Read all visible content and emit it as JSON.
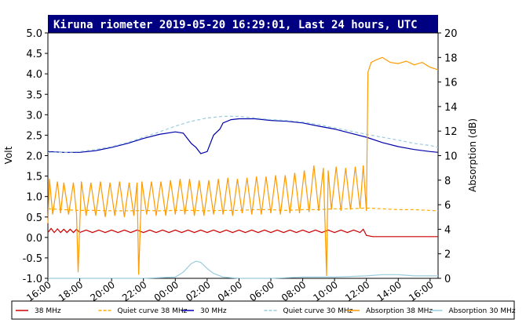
{
  "chart_data": {
    "type": "line",
    "title": "Kiruna riometer 2019-05-20 16:29:01, Last 24 hours, UTC",
    "ylabel": "Volt",
    "y2label": "Absorption (dB)",
    "ylim": [
      -1.0,
      5.0
    ],
    "y2lim": [
      0,
      20
    ],
    "xlim": [
      16,
      40.5
    ],
    "yticks": [
      "5.0",
      "4.5",
      "4.0",
      "3.5",
      "3.0",
      "2.5",
      "2.0",
      "1.5",
      "1.0",
      "0.5",
      "0.0",
      "-0.5",
      "-1.0"
    ],
    "y2ticks": [
      "20",
      "18",
      "16",
      "14",
      "12",
      "10",
      "8",
      "6",
      "4",
      "2",
      "0"
    ],
    "xticks": [
      "16:00",
      "18:00",
      "20:00",
      "22:00",
      "00:00",
      "02:00",
      "04:00",
      "06:00",
      "08:00",
      "10:00",
      "12:00",
      "14:00",
      "16:00"
    ],
    "grid": false,
    "legend_position": "bottom",
    "series": [
      {
        "name": "38 MHz",
        "color": "#cc0000",
        "dash": "solid",
        "axis": "left",
        "x": [
          16,
          16.2,
          16.4,
          16.6,
          16.8,
          17.0,
          17.2,
          17.4,
          17.6,
          17.8,
          18.0,
          18.4,
          18.8,
          19.2,
          19.6,
          20.0,
          20.4,
          20.8,
          21.2,
          21.6,
          22.0,
          22.4,
          22.8,
          23.2,
          23.6,
          24.0,
          24.4,
          24.8,
          25.2,
          25.6,
          26.0,
          26.4,
          26.8,
          27.2,
          27.6,
          28.0,
          28.4,
          28.8,
          29.2,
          29.6,
          30.0,
          30.4,
          30.8,
          31.2,
          31.6,
          32.0,
          32.4,
          32.8,
          33.2,
          33.6,
          34.0,
          34.4,
          34.8,
          35.2,
          35.6,
          35.8,
          36.0,
          36.4,
          37.0,
          38.0,
          39.0,
          40.0,
          40.5
        ],
        "y": [
          0.12,
          0.22,
          0.12,
          0.21,
          0.12,
          0.2,
          0.12,
          0.2,
          0.12,
          0.2,
          0.12,
          0.18,
          0.12,
          0.18,
          0.12,
          0.18,
          0.12,
          0.18,
          0.12,
          0.18,
          0.12,
          0.18,
          0.12,
          0.18,
          0.12,
          0.18,
          0.12,
          0.18,
          0.12,
          0.18,
          0.12,
          0.18,
          0.12,
          0.18,
          0.12,
          0.18,
          0.12,
          0.18,
          0.12,
          0.18,
          0.12,
          0.18,
          0.12,
          0.18,
          0.12,
          0.18,
          0.12,
          0.18,
          0.12,
          0.18,
          0.12,
          0.18,
          0.12,
          0.18,
          0.12,
          0.2,
          0.05,
          0.02,
          0.02,
          0.02,
          0.02,
          0.02,
          0.02
        ]
      },
      {
        "name": "Quiet curve 38 MHz",
        "color": "#ffaa00",
        "dash": "dashed",
        "axis": "left",
        "x": [
          16,
          17,
          18,
          19,
          20,
          21,
          22,
          23,
          24,
          25,
          26,
          27,
          28,
          29,
          30,
          31,
          32,
          33,
          34,
          35,
          36,
          37,
          38,
          39,
          40,
          40.5
        ],
        "y": [
          0.7,
          0.68,
          0.66,
          0.66,
          0.65,
          0.65,
          0.66,
          0.65,
          0.66,
          0.66,
          0.65,
          0.66,
          0.66,
          0.68,
          0.68,
          0.66,
          0.68,
          0.68,
          0.7,
          0.7,
          0.72,
          0.7,
          0.68,
          0.68,
          0.66,
          0.65
        ]
      },
      {
        "name": "30 MHz",
        "color": "#0000aa",
        "dash": "solid",
        "axis": "left",
        "x": [
          16,
          17,
          18,
          19,
          20,
          21,
          22,
          23,
          24,
          24.5,
          25,
          25.3,
          25.6,
          26.0,
          26.4,
          26.8,
          27.0,
          27.5,
          28,
          29,
          30,
          31,
          32,
          33,
          34,
          35,
          36,
          37,
          38,
          39,
          40,
          40.5
        ],
        "y": [
          2.1,
          2.08,
          2.08,
          2.12,
          2.2,
          2.3,
          2.42,
          2.52,
          2.58,
          2.55,
          2.3,
          2.2,
          2.05,
          2.1,
          2.5,
          2.65,
          2.8,
          2.88,
          2.9,
          2.9,
          2.86,
          2.84,
          2.8,
          2.72,
          2.65,
          2.55,
          2.45,
          2.32,
          2.22,
          2.15,
          2.1,
          2.08
        ]
      },
      {
        "name": "Quiet curve 30 MHz",
        "color": "#99ccdd",
        "dash": "dashed",
        "axis": "left",
        "x": [
          16,
          17,
          18,
          19,
          20,
          21,
          22,
          23,
          24,
          25,
          26,
          27,
          28,
          29,
          30,
          31,
          32,
          33,
          34,
          35,
          36,
          37,
          38,
          39,
          40,
          40.5
        ],
        "y": [
          2.08,
          2.08,
          2.1,
          2.15,
          2.22,
          2.32,
          2.45,
          2.58,
          2.72,
          2.84,
          2.92,
          2.96,
          2.96,
          2.92,
          2.88,
          2.86,
          2.82,
          2.76,
          2.68,
          2.6,
          2.52,
          2.45,
          2.38,
          2.3,
          2.25,
          2.2
        ]
      },
      {
        "name": "Absorption 38 MHz",
        "color": "#ff9900",
        "dash": "solid",
        "axis": "right",
        "x": [
          16,
          16.1,
          16.3,
          16.6,
          16.8,
          17.0,
          17.3,
          17.6,
          17.8,
          17.9,
          18.1,
          18.4,
          18.7,
          19.0,
          19.3,
          19.6,
          19.9,
          20.2,
          20.5,
          20.8,
          21.1,
          21.4,
          21.6,
          21.7,
          21.9,
          22.2,
          22.5,
          22.8,
          23.1,
          23.4,
          23.7,
          24.0,
          24.3,
          24.6,
          24.9,
          25.2,
          25.5,
          25.8,
          26.1,
          26.4,
          26.7,
          27.0,
          27.3,
          27.6,
          27.9,
          28.2,
          28.5,
          28.8,
          29.1,
          29.4,
          29.7,
          30.0,
          30.3,
          30.6,
          30.9,
          31.2,
          31.5,
          31.8,
          32.1,
          32.4,
          32.7,
          33.0,
          33.3,
          33.5,
          33.6,
          33.8,
          34.1,
          34.4,
          34.7,
          35.0,
          35.3,
          35.6,
          35.8,
          36.0,
          36.1,
          36.3,
          36.6,
          37.0,
          37.5,
          38.0,
          38.5,
          39.0,
          39.5,
          40.0,
          40.5
        ],
        "y": [
          4.5,
          8.1,
          5.2,
          7.9,
          5.3,
          7.8,
          5.2,
          7.8,
          5.2,
          0.5,
          7.9,
          5.1,
          7.8,
          5.1,
          7.9,
          5.0,
          7.8,
          5.1,
          7.9,
          5.0,
          7.8,
          5.1,
          7.8,
          0.3,
          7.9,
          5.2,
          7.9,
          5.1,
          7.9,
          5.1,
          8.0,
          5.2,
          8.1,
          5.2,
          8.1,
          5.1,
          8.0,
          5.1,
          8.0,
          5.2,
          8.1,
          5.2,
          8.2,
          5.1,
          8.1,
          5.3,
          8.2,
          5.2,
          8.3,
          5.2,
          8.3,
          5.3,
          8.4,
          5.2,
          8.4,
          5.3,
          8.6,
          5.3,
          8.8,
          5.4,
          9.2,
          5.5,
          9.0,
          0.2,
          8.8,
          5.6,
          9.1,
          5.5,
          9.0,
          5.6,
          9.1,
          5.7,
          9.2,
          5.5,
          16.8,
          17.6,
          17.8,
          18.0,
          17.6,
          17.5,
          17.7,
          17.4,
          17.6,
          17.2,
          17.0
        ]
      },
      {
        "name": "Absorption 30 MHz",
        "color": "#99ccdd",
        "dash": "solid",
        "axis": "right",
        "x": [
          16,
          18,
          20,
          22,
          24,
          24.5,
          25.0,
          25.3,
          25.6,
          26.0,
          26.4,
          27.0,
          28,
          30,
          32,
          34,
          36,
          37,
          38,
          39,
          40,
          40.5
        ],
        "y": [
          0.0,
          0.0,
          0.0,
          0.0,
          0.1,
          0.5,
          1.2,
          1.4,
          1.3,
          0.8,
          0.4,
          0.1,
          0.0,
          0.0,
          0.1,
          0.1,
          0.2,
          0.3,
          0.3,
          0.2,
          0.2,
          0.2
        ]
      }
    ]
  }
}
